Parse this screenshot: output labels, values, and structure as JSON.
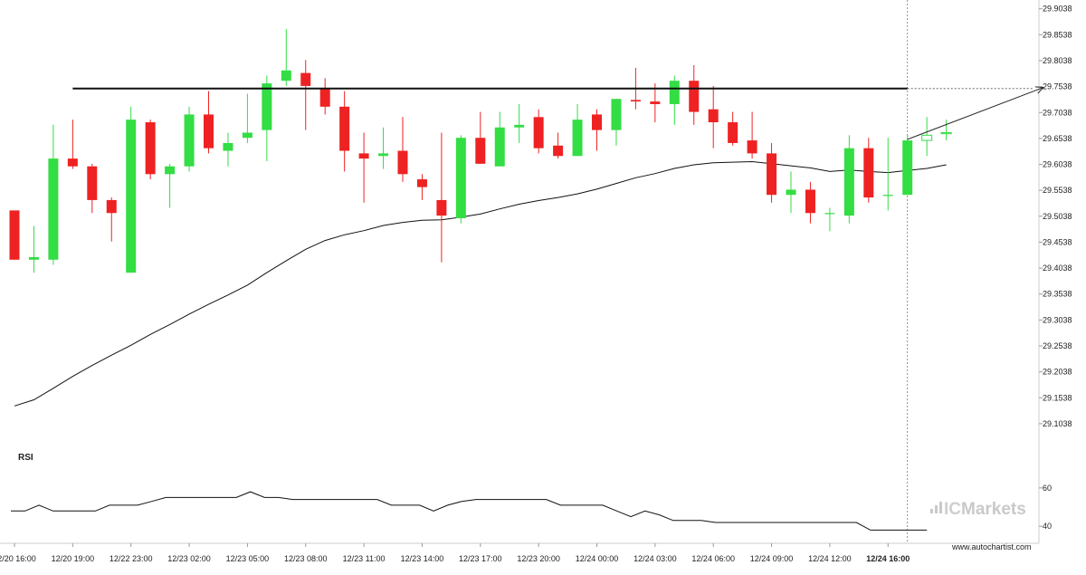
{
  "chart_data": {
    "type": "candlestick",
    "colors": {
      "up": "#33dd44",
      "down": "#ee2222",
      "ma": "#111111",
      "rsi": "#111111",
      "resistance": "#111111",
      "grid": "#d8d8d8",
      "arrow": "#222222"
    },
    "price_axis": {
      "ylim": [
        29.06,
        29.912
      ],
      "ticks": [
        29.9038,
        29.8538,
        29.8038,
        29.7538,
        29.7038,
        29.6538,
        29.6038,
        29.5538,
        29.5038,
        29.4538,
        29.4038,
        29.3538,
        29.3038,
        29.2538,
        29.2038,
        29.1538,
        29.1038
      ],
      "tick_labels": [
        "29.9038",
        "29.8538",
        "29.8038",
        "29.7538",
        "29.7038",
        "29.6538",
        "29.6038",
        "29.5538",
        "29.5038",
        "29.4538",
        "29.4038",
        "29.3538",
        "29.3038",
        "29.2538",
        "29.2038",
        "29.1538",
        "29.1038"
      ]
    },
    "time_axis": {
      "labels": [
        "12/20 16:00",
        "12/20 19:00",
        "12/22 23:00",
        "12/23 02:00",
        "12/23 05:00",
        "12/23 08:00",
        "12/23 11:00",
        "12/23 14:00",
        "12/23 17:00",
        "12/23 20:00",
        "12/24 00:00",
        "12/24 03:00",
        "12/24 06:00",
        "12/24 09:00",
        "12/24 12:00",
        "12/24 16:00"
      ],
      "label_candle_index": [
        0,
        3,
        6,
        9,
        12,
        15,
        18,
        21,
        24,
        27,
        30,
        33,
        36,
        39,
        42,
        45
      ],
      "highlighted_label": "12/24 16:00"
    },
    "candles": [
      {
        "o": 29.515,
        "h": 29.515,
        "l": 29.42,
        "c": 29.42
      },
      {
        "o": 29.42,
        "h": 29.485,
        "l": 29.395,
        "c": 29.425
      },
      {
        "o": 29.42,
        "h": 29.68,
        "l": 29.41,
        "c": 29.615
      },
      {
        "o": 29.615,
        "h": 29.69,
        "l": 29.595,
        "c": 29.6
      },
      {
        "o": 29.6,
        "h": 29.605,
        "l": 29.51,
        "c": 29.535
      },
      {
        "o": 29.535,
        "h": 29.54,
        "l": 29.455,
        "c": 29.51
      },
      {
        "o": 29.395,
        "h": 29.715,
        "l": 29.395,
        "c": 29.69
      },
      {
        "o": 29.685,
        "h": 29.69,
        "l": 29.575,
        "c": 29.585
      },
      {
        "o": 29.585,
        "h": 29.605,
        "l": 29.52,
        "c": 29.6
      },
      {
        "o": 29.6,
        "h": 29.715,
        "l": 29.59,
        "c": 29.7
      },
      {
        "o": 29.7,
        "h": 29.745,
        "l": 29.625,
        "c": 29.635
      },
      {
        "o": 29.63,
        "h": 29.665,
        "l": 29.6,
        "c": 29.645
      },
      {
        "o": 29.655,
        "h": 29.74,
        "l": 29.645,
        "c": 29.665
      },
      {
        "o": 29.67,
        "h": 29.775,
        "l": 29.61,
        "c": 29.76
      },
      {
        "o": 29.765,
        "h": 29.865,
        "l": 29.755,
        "c": 29.785
      },
      {
        "o": 29.78,
        "h": 29.805,
        "l": 29.67,
        "c": 29.755
      },
      {
        "o": 29.75,
        "h": 29.77,
        "l": 29.7,
        "c": 29.715
      },
      {
        "o": 29.715,
        "h": 29.745,
        "l": 29.59,
        "c": 29.63
      },
      {
        "o": 29.625,
        "h": 29.665,
        "l": 29.53,
        "c": 29.615
      },
      {
        "o": 29.62,
        "h": 29.675,
        "l": 29.595,
        "c": 29.625
      },
      {
        "o": 29.63,
        "h": 29.695,
        "l": 29.57,
        "c": 29.585
      },
      {
        "o": 29.575,
        "h": 29.585,
        "l": 29.535,
        "c": 29.56
      },
      {
        "o": 29.535,
        "h": 29.665,
        "l": 29.415,
        "c": 29.505
      },
      {
        "o": 29.5,
        "h": 29.66,
        "l": 29.49,
        "c": 29.655
      },
      {
        "o": 29.655,
        "h": 29.705,
        "l": 29.605,
        "c": 29.605
      },
      {
        "o": 29.6,
        "h": 29.705,
        "l": 29.6,
        "c": 29.675
      },
      {
        "o": 29.675,
        "h": 29.72,
        "l": 29.645,
        "c": 29.68
      },
      {
        "o": 29.695,
        "h": 29.71,
        "l": 29.625,
        "c": 29.635
      },
      {
        "o": 29.64,
        "h": 29.665,
        "l": 29.615,
        "c": 29.62
      },
      {
        "o": 29.62,
        "h": 29.72,
        "l": 29.62,
        "c": 29.69
      },
      {
        "o": 29.7,
        "h": 29.71,
        "l": 29.63,
        "c": 29.67
      },
      {
        "o": 29.67,
        "h": 29.73,
        "l": 29.64,
        "c": 29.73
      },
      {
        "o": 29.728,
        "h": 29.79,
        "l": 29.71,
        "c": 29.725
      },
      {
        "o": 29.725,
        "h": 29.76,
        "l": 29.685,
        "c": 29.72
      },
      {
        "o": 29.72,
        "h": 29.775,
        "l": 29.68,
        "c": 29.765
      },
      {
        "o": 29.765,
        "h": 29.795,
        "l": 29.68,
        "c": 29.705
      },
      {
        "o": 29.71,
        "h": 29.755,
        "l": 29.635,
        "c": 29.685
      },
      {
        "o": 29.685,
        "h": 29.705,
        "l": 29.64,
        "c": 29.645
      },
      {
        "o": 29.65,
        "h": 29.705,
        "l": 29.615,
        "c": 29.625
      },
      {
        "o": 29.625,
        "h": 29.645,
        "l": 29.53,
        "c": 29.545
      },
      {
        "o": 29.545,
        "h": 29.59,
        "l": 29.51,
        "c": 29.555
      },
      {
        "o": 29.555,
        "h": 29.57,
        "l": 29.49,
        "c": 29.51
      },
      {
        "o": 29.51,
        "h": 29.52,
        "l": 29.475,
        "c": 29.51
      },
      {
        "o": 29.505,
        "h": 29.66,
        "l": 29.49,
        "c": 29.635
      },
      {
        "o": 29.635,
        "h": 29.655,
        "l": 29.53,
        "c": 29.54
      },
      {
        "o": 29.545,
        "h": 29.655,
        "l": 29.515,
        "c": 29.545
      },
      {
        "o": 29.545,
        "h": 29.66,
        "l": 29.545,
        "c": 29.65
      },
      {
        "o": 29.65,
        "h": 29.695,
        "l": 29.62,
        "c": 29.66
      },
      {
        "o": 29.665,
        "h": 29.69,
        "l": 29.65,
        "c": 29.665
      }
    ],
    "moving_average": [
      29.138,
      29.15,
      29.172,
      29.195,
      29.216,
      29.236,
      29.255,
      29.276,
      29.295,
      29.315,
      29.334,
      29.352,
      29.371,
      29.395,
      29.418,
      29.44,
      29.457,
      29.468,
      29.476,
      29.486,
      29.492,
      29.496,
      29.497,
      29.502,
      29.508,
      29.518,
      29.527,
      29.534,
      29.54,
      29.547,
      29.556,
      29.567,
      29.578,
      29.586,
      29.596,
      29.603,
      29.607,
      29.608,
      29.609,
      29.605,
      29.601,
      29.597,
      29.59,
      29.593,
      29.59,
      29.588,
      29.592,
      29.596,
      29.603
    ],
    "resistance": {
      "level": 29.75,
      "start_index": 3
    },
    "projection": {
      "from_index": 46,
      "from_value": 29.652,
      "to_index": 53,
      "to_value": 29.752
    },
    "marker_index": 46,
    "rsi": {
      "label": "RSI",
      "ylim": [
        33,
        76
      ],
      "ticks": [
        60,
        40
      ],
      "tick_labels": [
        "60",
        "40"
      ],
      "values": [
        48,
        48,
        51,
        48,
        48,
        48,
        48,
        51,
        51,
        51,
        53,
        55,
        55,
        55,
        55,
        55,
        55,
        58,
        55,
        55,
        54,
        54,
        54,
        54,
        54,
        54,
        54,
        51,
        51,
        51,
        48,
        51,
        53,
        54,
        54,
        54,
        54,
        54,
        54,
        51,
        51,
        51,
        51,
        48,
        45,
        48,
        46,
        43,
        43,
        43,
        42,
        42,
        42,
        42,
        42,
        42,
        42,
        42,
        42,
        42,
        42,
        38,
        38,
        38,
        38,
        38
      ]
    }
  },
  "watermark": {
    "brand_prefix": "IC",
    "brand_suffix": "Markets"
  },
  "source": "www.autochartist.com"
}
